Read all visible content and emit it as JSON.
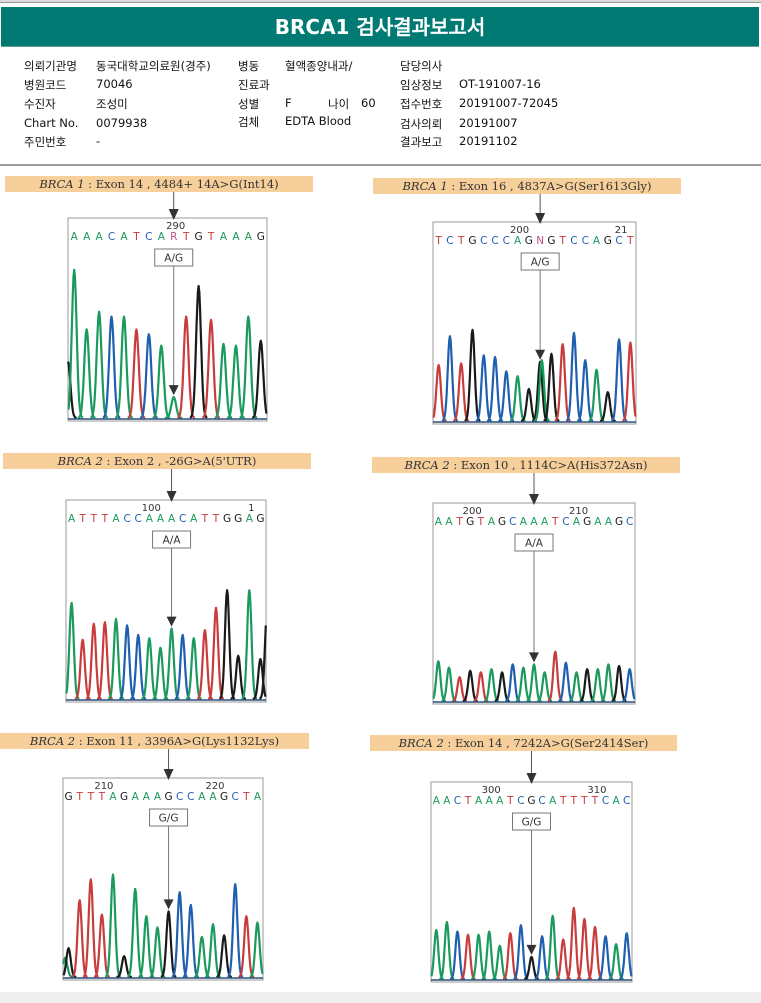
{
  "report": {
    "title": "BRCA1 검사결과보고서"
  },
  "info": {
    "col1": [
      {
        "label": "의뢰기관명",
        "value": "동국대학교의료원(경주)"
      },
      {
        "label": "병원코드",
        "value": "70046"
      },
      {
        "label": "수진자",
        "value": "조성미"
      },
      {
        "label": "Chart No.",
        "value": "0079938"
      },
      {
        "label": "주민번호",
        "value": "-"
      }
    ],
    "col2": [
      {
        "label": "병동",
        "value": "혈액종양내과/"
      },
      {
        "label": "진료과",
        "value": ""
      },
      {
        "label": "성별",
        "value": "F"
      },
      {
        "label": "검체",
        "value": "EDTA Blood"
      }
    ],
    "age": {
      "label": "나이",
      "value": "60"
    },
    "col3": [
      {
        "label": "담당의사",
        "value": ""
      },
      {
        "label": "임상정보",
        "value": "OT-191007-16"
      },
      {
        "label": "접수번호",
        "value": "20191007-72045"
      },
      {
        "label": "검사의뢰",
        "value": "20191007"
      },
      {
        "label": "결과보고",
        "value": "20191102"
      }
    ]
  },
  "colors": {
    "header": "#007a73",
    "label_bg": "#f7cf9b",
    "A": "#1a9a5c",
    "C": "#1f5fb0",
    "G": "#1a1a1a",
    "T": "#c83c3c",
    "N": "#c0508a"
  },
  "chart_data": [
    {
      "type": "line",
      "title_gene": "BRCA 1",
      "title_rest": " : Exon 14 , 4484+ 14A>G(Int14)",
      "genotype": "A/G",
      "position_labels": [
        {
          "text": "290",
          "index": 8
        }
      ],
      "sequence": [
        "A",
        "A",
        "A",
        "C",
        "A",
        "T",
        "C",
        "A",
        "R",
        "T",
        "G",
        "T",
        "A",
        "A",
        "A",
        "G"
      ],
      "marker_index": 8,
      "peaks": [
        {
          "base": "G",
          "h": 0.35,
          "i": -0.5
        },
        {
          "base": "A",
          "h": 0.92,
          "i": 0
        },
        {
          "base": "A",
          "h": 0.55,
          "i": 1
        },
        {
          "base": "A",
          "h": 0.66,
          "i": 2
        },
        {
          "base": "C",
          "h": 0.63,
          "i": 3
        },
        {
          "base": "A",
          "h": 0.63,
          "i": 4
        },
        {
          "base": "T",
          "h": 0.55,
          "i": 5
        },
        {
          "base": "C",
          "h": 0.52,
          "i": 6
        },
        {
          "base": "A",
          "h": 0.45,
          "i": 7
        },
        {
          "base": "A",
          "h": 0.13,
          "i": 8
        },
        {
          "base": "T",
          "h": 0.63,
          "i": 9
        },
        {
          "base": "G",
          "h": 0.82,
          "i": 10
        },
        {
          "base": "T",
          "h": 0.61,
          "i": 11
        },
        {
          "base": "A",
          "h": 0.46,
          "i": 12
        },
        {
          "base": "A",
          "h": 0.45,
          "i": 13
        },
        {
          "base": "A",
          "h": 0.63,
          "i": 14
        },
        {
          "base": "G",
          "h": 0.48,
          "i": 15
        }
      ]
    },
    {
      "type": "line",
      "title_gene": "BRCA 1",
      "title_rest": " : Exon 16 , 4837A>G(Ser1613Gly)",
      "genotype": "A/G",
      "position_labels": [
        {
          "text": "200",
          "index": 7
        },
        {
          "text": "21",
          "index": 16
        }
      ],
      "sequence": [
        "T",
        "C",
        "T",
        "G",
        "C",
        "C",
        "C",
        "A",
        "G",
        "N",
        "G",
        "T",
        "C",
        "C",
        "A",
        "G",
        "C",
        "T"
      ],
      "marker_index": 9,
      "peaks": [
        {
          "base": "T",
          "h": 0.35,
          "i": 0
        },
        {
          "base": "C",
          "h": 0.53,
          "i": 1
        },
        {
          "base": "T",
          "h": 0.36,
          "i": 2
        },
        {
          "base": "G",
          "h": 0.57,
          "i": 3
        },
        {
          "base": "C",
          "h": 0.41,
          "i": 4
        },
        {
          "base": "C",
          "h": 0.4,
          "i": 5
        },
        {
          "base": "C",
          "h": 0.31,
          "i": 6
        },
        {
          "base": "A",
          "h": 0.28,
          "i": 7
        },
        {
          "base": "G",
          "h": 0.2,
          "i": 8
        },
        {
          "base": "G",
          "h": 0.37,
          "i": 9
        },
        {
          "base": "A",
          "h": 0.38,
          "i": 9.15
        },
        {
          "base": "G",
          "h": 0.42,
          "i": 10
        },
        {
          "base": "T",
          "h": 0.48,
          "i": 11
        },
        {
          "base": "C",
          "h": 0.55,
          "i": 12
        },
        {
          "base": "C",
          "h": 0.38,
          "i": 13
        },
        {
          "base": "A",
          "h": 0.32,
          "i": 14
        },
        {
          "base": "G",
          "h": 0.18,
          "i": 15
        },
        {
          "base": "C",
          "h": 0.51,
          "i": 16
        },
        {
          "base": "T",
          "h": 0.49,
          "i": 17
        }
      ]
    },
    {
      "type": "line",
      "title_gene": "BRCA 2",
      "title_rest": " : Exon 2 , -26G>A(5'UTR)",
      "genotype": "A/A",
      "position_labels": [
        {
          "text": "100",
          "index": 7
        },
        {
          "text": "1",
          "index": 16
        }
      ],
      "sequence": [
        "A",
        "T",
        "T",
        "T",
        "A",
        "C",
        "C",
        "A",
        "A",
        "A",
        "C",
        "A",
        "T",
        "T",
        "G",
        "G",
        "A",
        "G"
      ],
      "marker_index": 9,
      "peaks": [
        {
          "base": "A",
          "h": 0.6,
          "i": 0
        },
        {
          "base": "T",
          "h": 0.37,
          "i": 1
        },
        {
          "base": "T",
          "h": 0.47,
          "i": 2
        },
        {
          "base": "T",
          "h": 0.48,
          "i": 3
        },
        {
          "base": "A",
          "h": 0.5,
          "i": 4
        },
        {
          "base": "C",
          "h": 0.46,
          "i": 5
        },
        {
          "base": "C",
          "h": 0.4,
          "i": 6
        },
        {
          "base": "A",
          "h": 0.38,
          "i": 7
        },
        {
          "base": "A",
          "h": 0.32,
          "i": 8
        },
        {
          "base": "A",
          "h": 0.44,
          "i": 9
        },
        {
          "base": "C",
          "h": 0.4,
          "i": 10
        },
        {
          "base": "A",
          "h": 0.38,
          "i": 11
        },
        {
          "base": "T",
          "h": 0.43,
          "i": 12
        },
        {
          "base": "T",
          "h": 0.57,
          "i": 13
        },
        {
          "base": "G",
          "h": 0.68,
          "i": 14
        },
        {
          "base": "G",
          "h": 0.27,
          "i": 15
        },
        {
          "base": "A",
          "h": 0.68,
          "i": 16
        },
        {
          "base": "G",
          "h": 0.25,
          "i": 17
        },
        {
          "base": "G",
          "h": 0.55,
          "i": 17.6
        }
      ]
    },
    {
      "type": "line",
      "title_gene": "BRCA 2",
      "title_rest": " : Exon 10 , 1114C>A(His372Asn)",
      "genotype": "A/A",
      "position_labels": [
        {
          "text": "200",
          "index": 3
        },
        {
          "text": "210",
          "index": 13
        }
      ],
      "sequence": [
        "A",
        "A",
        "T",
        "G",
        "T",
        "A",
        "G",
        "C",
        "A",
        "A",
        "A",
        "T",
        "C",
        "A",
        "G",
        "A",
        "A",
        "G",
        "C"
      ],
      "marker_index": 9,
      "peaks": [
        {
          "base": "A",
          "h": 0.25,
          "i": 0
        },
        {
          "base": "A",
          "h": 0.21,
          "i": 1
        },
        {
          "base": "T",
          "h": 0.15,
          "i": 2
        },
        {
          "base": "G",
          "h": 0.19,
          "i": 3
        },
        {
          "base": "T",
          "h": 0.18,
          "i": 4
        },
        {
          "base": "A",
          "h": 0.2,
          "i": 5
        },
        {
          "base": "G",
          "h": 0.18,
          "i": 6
        },
        {
          "base": "C",
          "h": 0.23,
          "i": 7
        },
        {
          "base": "A",
          "h": 0.21,
          "i": 8
        },
        {
          "base": "A",
          "h": 0.23,
          "i": 9
        },
        {
          "base": "A",
          "h": 0.18,
          "i": 10
        },
        {
          "base": "T",
          "h": 0.31,
          "i": 11
        },
        {
          "base": "C",
          "h": 0.24,
          "i": 12
        },
        {
          "base": "A",
          "h": 0.18,
          "i": 13
        },
        {
          "base": "G",
          "h": 0.2,
          "i": 14
        },
        {
          "base": "A",
          "h": 0.2,
          "i": 15
        },
        {
          "base": "A",
          "h": 0.23,
          "i": 16
        },
        {
          "base": "G",
          "h": 0.22,
          "i": 17
        },
        {
          "base": "C",
          "h": 0.2,
          "i": 18
        }
      ]
    },
    {
      "type": "line",
      "title_gene": "BRCA 2",
      "title_rest": " : Exon 11 , 3396A>G(Lys1132Lys)",
      "genotype": "G/G",
      "position_labels": [
        {
          "text": "210",
          "index": 3
        },
        {
          "text": "220",
          "index": 13
        }
      ],
      "sequence": [
        "G",
        "T",
        "T",
        "T",
        "A",
        "G",
        "A",
        "A",
        "A",
        "G",
        "C",
        "C",
        "A",
        "A",
        "G",
        "C",
        "T",
        "A"
      ],
      "marker_index": 9,
      "peaks": [
        {
          "base": "A",
          "h": 0.12,
          "i": -0.3
        },
        {
          "base": "G",
          "h": 0.18,
          "i": 0
        },
        {
          "base": "T",
          "h": 0.48,
          "i": 1
        },
        {
          "base": "T",
          "h": 0.61,
          "i": 2
        },
        {
          "base": "T",
          "h": 0.39,
          "i": 3
        },
        {
          "base": "A",
          "h": 0.64,
          "i": 4
        },
        {
          "base": "G",
          "h": 0.13,
          "i": 5
        },
        {
          "base": "A",
          "h": 0.55,
          "i": 6
        },
        {
          "base": "A",
          "h": 0.38,
          "i": 7
        },
        {
          "base": "A",
          "h": 0.31,
          "i": 8
        },
        {
          "base": "G",
          "h": 0.41,
          "i": 9
        },
        {
          "base": "C",
          "h": 0.53,
          "i": 10
        },
        {
          "base": "C",
          "h": 0.45,
          "i": 11
        },
        {
          "base": "A",
          "h": 0.25,
          "i": 12
        },
        {
          "base": "A",
          "h": 0.33,
          "i": 13
        },
        {
          "base": "G",
          "h": 0.26,
          "i": 14
        },
        {
          "base": "C",
          "h": 0.58,
          "i": 15
        },
        {
          "base": "T",
          "h": 0.38,
          "i": 16
        },
        {
          "base": "A",
          "h": 0.34,
          "i": 17
        }
      ]
    },
    {
      "type": "line",
      "title_gene": "BRCA 2",
      "title_rest": " : Exon 14 , 7242A>G(Ser2414Ser)",
      "genotype": "G/G",
      "position_labels": [
        {
          "text": "300",
          "index": 5
        },
        {
          "text": "310",
          "index": 15
        }
      ],
      "sequence": [
        "A",
        "A",
        "C",
        "T",
        "A",
        "A",
        "A",
        "T",
        "C",
        "G",
        "C",
        "A",
        "T",
        "T",
        "T",
        "T",
        "C",
        "A",
        "C"
      ],
      "marker_index": 9,
      "peaks": [
        {
          "base": "A",
          "h": 0.31,
          "i": 0
        },
        {
          "base": "A",
          "h": 0.36,
          "i": 1
        },
        {
          "base": "C",
          "h": 0.3,
          "i": 2
        },
        {
          "base": "T",
          "h": 0.28,
          "i": 3
        },
        {
          "base": "A",
          "h": 0.28,
          "i": 4
        },
        {
          "base": "A",
          "h": 0.3,
          "i": 5
        },
        {
          "base": "A",
          "h": 0.21,
          "i": 6
        },
        {
          "base": "T",
          "h": 0.29,
          "i": 7
        },
        {
          "base": "C",
          "h": 0.34,
          "i": 8
        },
        {
          "base": "G",
          "h": 0.14,
          "i": 9
        },
        {
          "base": "C",
          "h": 0.27,
          "i": 10
        },
        {
          "base": "A",
          "h": 0.4,
          "i": 11
        },
        {
          "base": "T",
          "h": 0.25,
          "i": 12
        },
        {
          "base": "T",
          "h": 0.45,
          "i": 13
        },
        {
          "base": "T",
          "h": 0.38,
          "i": 14
        },
        {
          "base": "T",
          "h": 0.33,
          "i": 15
        },
        {
          "base": "C",
          "h": 0.27,
          "i": 16
        },
        {
          "base": "A",
          "h": 0.22,
          "i": 17
        },
        {
          "base": "C",
          "h": 0.29,
          "i": 18
        }
      ]
    }
  ]
}
